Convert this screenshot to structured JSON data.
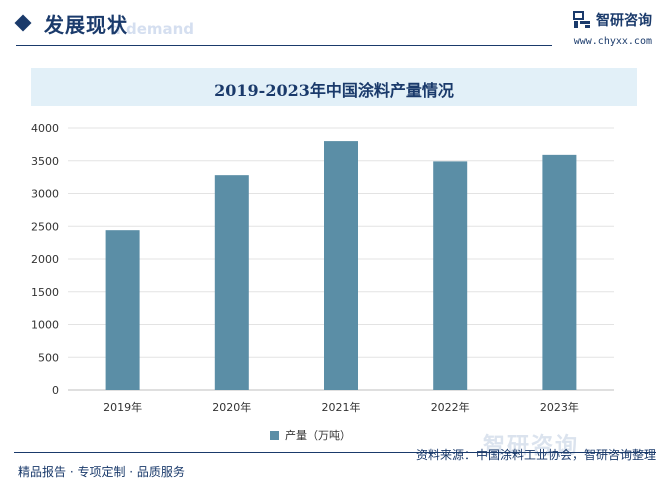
{
  "header": {
    "section_title": "发展现状",
    "section_watermark": "d demand",
    "brand_name": "智研咨询",
    "brand_url": "www.chyxx.com"
  },
  "chart_data": {
    "type": "bar",
    "title": "2019-2023年中国涂料产量情况",
    "categories": [
      "2019年",
      "2020年",
      "2021年",
      "2022年",
      "2023年"
    ],
    "series": [
      {
        "name": "产量（万吨）",
        "values": [
          2440,
          3280,
          3800,
          3490,
          3590
        ],
        "color": "#5b8ea6"
      }
    ],
    "ylim": [
      0,
      4000
    ],
    "yticks": [
      0,
      500,
      1000,
      1500,
      2000,
      2500,
      3000,
      3500,
      4000
    ],
    "grid": true,
    "legend": "bottom-center",
    "xlabel": "",
    "ylabel": ""
  },
  "footer": {
    "tagline": "精品报告 · 专项定制 · 品质服务",
    "source": "资料来源：中国涂料工业协会，智研咨询整理",
    "watermark_brand": "智研咨询"
  }
}
